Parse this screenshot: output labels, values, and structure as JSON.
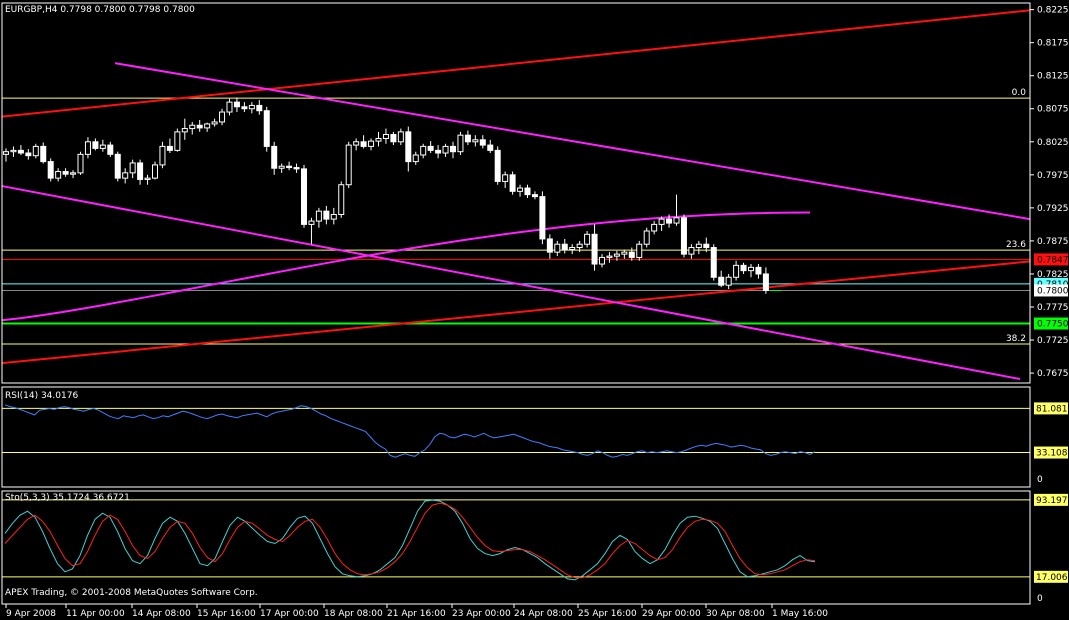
{
  "title": "EURGBP,H4  0.7798 0.7800 0.7798 0.7800",
  "copyright": "APEX Trading, © 2001-2008 MetaQuotes Software Corp.",
  "colors": {
    "background": "#000000",
    "frame": "#ffffff",
    "bull": "#ffffff",
    "bear": "#ffffff",
    "red_line": "#ff1010",
    "magenta_line": "#ff20ff",
    "fibo_line": "#ffff66",
    "green_line": "#00ff00",
    "rsi": "#3f7fff",
    "sto_main": "#3fd0d0",
    "sto_signal": "#ff2020"
  },
  "price_axis": {
    "ticks": [
      "0.8225",
      "0.8175",
      "0.8125",
      "0.8075",
      "0.8025",
      "0.7975",
      "0.7925",
      "0.7875",
      "0.7825",
      "0.7775",
      "0.7725",
      "0.7675"
    ],
    "ylim": [
      0.766,
      0.8235
    ]
  },
  "price_tags": [
    {
      "label": "0.7847",
      "value": 0.7847,
      "bg": "#ff1010",
      "fg": "#000000"
    },
    {
      "label": "0.7810",
      "value": 0.781,
      "bg": "#66ffff",
      "fg": "#000000"
    },
    {
      "label": "0.7800",
      "value": 0.78,
      "bg": "#ffffff",
      "fg": "#000000"
    },
    {
      "label": "0.7750",
      "value": 0.775,
      "bg": "#00ff00",
      "fg": "#000000"
    }
  ],
  "fib_levels": [
    {
      "label": "0.0",
      "value": 0.8091
    },
    {
      "label": "23.6",
      "value": 0.7861
    },
    {
      "label": "38.2",
      "value": 0.7719
    }
  ],
  "chart_data": [
    {
      "type": "candlestick",
      "name": "EURGBP,H4",
      "x_tick_labels": [
        "9 Apr 2008",
        "11 Apr 00:00",
        "14 Apr 08:00",
        "15 Apr 16:00",
        "17 Apr 00:00",
        "18 Apr 08:00",
        "21 Apr 16:00",
        "23 Apr 00:00",
        "24 Apr 08:00",
        "25 Apr 16:00",
        "29 Apr 00:00",
        "30 Apr 08:00",
        "1 May 16:00"
      ],
      "ohlc": [
        [
          0.8006,
          0.8015,
          0.7995,
          0.801
        ],
        [
          0.801,
          0.8018,
          0.8002,
          0.8012
        ],
        [
          0.8012,
          0.802,
          0.8005,
          0.8008
        ],
        [
          0.8008,
          0.8014,
          0.7998,
          0.8004
        ],
        [
          0.8004,
          0.8022,
          0.8,
          0.8018
        ],
        [
          0.8018,
          0.8024,
          0.7992,
          0.7995
        ],
        [
          0.7995,
          0.8,
          0.7965,
          0.797
        ],
        [
          0.797,
          0.7985,
          0.7965,
          0.798
        ],
        [
          0.798,
          0.7985,
          0.7972,
          0.7976
        ],
        [
          0.7976,
          0.7982,
          0.797,
          0.7978
        ],
        [
          0.7978,
          0.801,
          0.7975,
          0.8006
        ],
        [
          0.8006,
          0.8032,
          0.8,
          0.8025
        ],
        [
          0.8025,
          0.803,
          0.8012,
          0.8015
        ],
        [
          0.8015,
          0.8028,
          0.801,
          0.802
        ],
        [
          0.802,
          0.8025,
          0.8002,
          0.8006
        ],
        [
          0.8006,
          0.801,
          0.7965,
          0.797
        ],
        [
          0.797,
          0.7985,
          0.7962,
          0.7978
        ],
        [
          0.7978,
          0.7998,
          0.797,
          0.7993
        ],
        [
          0.7993,
          0.7998,
          0.796,
          0.7968
        ],
        [
          0.7968,
          0.7975,
          0.796,
          0.797
        ],
        [
          0.797,
          0.7995,
          0.7968,
          0.799
        ],
        [
          0.799,
          0.8025,
          0.7985,
          0.8018
        ],
        [
          0.8018,
          0.803,
          0.8008,
          0.8012
        ],
        [
          0.8012,
          0.8045,
          0.801,
          0.804
        ],
        [
          0.804,
          0.806,
          0.8028,
          0.8045
        ],
        [
          0.8045,
          0.8055,
          0.8036,
          0.805
        ],
        [
          0.805,
          0.8058,
          0.804,
          0.8046
        ],
        [
          0.8046,
          0.8054,
          0.804,
          0.8052
        ],
        [
          0.8052,
          0.806,
          0.8048,
          0.8055
        ],
        [
          0.8055,
          0.8075,
          0.805,
          0.807
        ],
        [
          0.807,
          0.809,
          0.8065,
          0.8085
        ],
        [
          0.8085,
          0.8092,
          0.807,
          0.8078
        ],
        [
          0.8078,
          0.8085,
          0.807,
          0.8075
        ],
        [
          0.8075,
          0.8085,
          0.8068,
          0.808
        ],
        [
          0.808,
          0.8088,
          0.8066,
          0.8072
        ],
        [
          0.8072,
          0.8078,
          0.801,
          0.8018
        ],
        [
          0.8018,
          0.8025,
          0.7975,
          0.7985
        ],
        [
          0.7985,
          0.7992,
          0.7978,
          0.7988
        ],
        [
          0.7988,
          0.7995,
          0.7982,
          0.7986
        ],
        [
          0.7986,
          0.7992,
          0.7978,
          0.7984
        ],
        [
          0.7984,
          0.799,
          0.7895,
          0.79
        ],
        [
          0.79,
          0.791,
          0.787,
          0.7905
        ],
        [
          0.7905,
          0.7925,
          0.7895,
          0.792
        ],
        [
          0.792,
          0.7928,
          0.79,
          0.7908
        ],
        [
          0.7908,
          0.7925,
          0.79,
          0.7915
        ],
        [
          0.7915,
          0.7965,
          0.791,
          0.796
        ],
        [
          0.796,
          0.8025,
          0.7955,
          0.802
        ],
        [
          0.802,
          0.803,
          0.8012,
          0.8025
        ],
        [
          0.8025,
          0.8035,
          0.8015,
          0.8018
        ],
        [
          0.8018,
          0.803,
          0.8012,
          0.8026
        ],
        [
          0.8026,
          0.804,
          0.8018,
          0.803
        ],
        [
          0.803,
          0.8045,
          0.8022,
          0.8036
        ],
        [
          0.8036,
          0.804,
          0.802,
          0.8025
        ],
        [
          0.8025,
          0.8045,
          0.802,
          0.804
        ],
        [
          0.804,
          0.8048,
          0.798,
          0.7995
        ],
        [
          0.7995,
          0.801,
          0.799,
          0.8005
        ],
        [
          0.8005,
          0.8022,
          0.8,
          0.8018
        ],
        [
          0.8018,
          0.8026,
          0.8008,
          0.8012
        ],
        [
          0.8012,
          0.802,
          0.8,
          0.8008
        ],
        [
          0.8008,
          0.8022,
          0.8002,
          0.8018
        ],
        [
          0.8018,
          0.8025,
          0.8,
          0.801
        ],
        [
          0.801,
          0.804,
          0.8005,
          0.8035
        ],
        [
          0.8035,
          0.8042,
          0.802,
          0.8025
        ],
        [
          0.8025,
          0.8035,
          0.8018,
          0.8028
        ],
        [
          0.8028,
          0.8035,
          0.8015,
          0.802
        ],
        [
          0.802,
          0.8028,
          0.8008,
          0.8012
        ],
        [
          0.8012,
          0.8018,
          0.796,
          0.7965
        ],
        [
          0.7965,
          0.798,
          0.7955,
          0.7975
        ],
        [
          0.7975,
          0.798,
          0.7945,
          0.795
        ],
        [
          0.795,
          0.796,
          0.7942,
          0.7955
        ],
        [
          0.7955,
          0.796,
          0.794,
          0.7945
        ],
        [
          0.7945,
          0.795,
          0.7938,
          0.7942
        ],
        [
          0.7942,
          0.795,
          0.787,
          0.7878
        ],
        [
          0.7878,
          0.7885,
          0.7848,
          0.7858
        ],
        [
          0.7858,
          0.7875,
          0.7852,
          0.787
        ],
        [
          0.787,
          0.7878,
          0.7856,
          0.7862
        ],
        [
          0.7862,
          0.787,
          0.7855,
          0.7865
        ],
        [
          0.7865,
          0.7875,
          0.7858,
          0.787
        ],
        [
          0.787,
          0.789,
          0.7865,
          0.7885
        ],
        [
          0.7885,
          0.79,
          0.783,
          0.784
        ],
        [
          0.784,
          0.7855,
          0.7835,
          0.785
        ],
        [
          0.785,
          0.7858,
          0.7842,
          0.7852
        ],
        [
          0.7852,
          0.786,
          0.7845,
          0.7855
        ],
        [
          0.7855,
          0.7862,
          0.7848,
          0.7858
        ],
        [
          0.7858,
          0.7865,
          0.7845,
          0.785
        ],
        [
          0.785,
          0.7875,
          0.7845,
          0.787
        ],
        [
          0.787,
          0.7895,
          0.7865,
          0.789
        ],
        [
          0.789,
          0.7905,
          0.7885,
          0.79
        ],
        [
          0.79,
          0.7912,
          0.789,
          0.7908
        ],
        [
          0.7908,
          0.7915,
          0.7895,
          0.7902
        ],
        [
          0.7902,
          0.7945,
          0.7898,
          0.791
        ],
        [
          0.791,
          0.7915,
          0.785,
          0.7855
        ],
        [
          0.7855,
          0.787,
          0.7848,
          0.7865
        ],
        [
          0.7865,
          0.7875,
          0.7855,
          0.787
        ],
        [
          0.787,
          0.788,
          0.7858,
          0.7865
        ],
        [
          0.7865,
          0.787,
          0.7815,
          0.782
        ],
        [
          0.782,
          0.783,
          0.7805,
          0.7808
        ],
        [
          0.7808,
          0.7825,
          0.7802,
          0.782
        ],
        [
          0.782,
          0.7845,
          0.7815,
          0.7838
        ],
        [
          0.7838,
          0.7842,
          0.7825,
          0.783
        ],
        [
          0.783,
          0.784,
          0.782,
          0.7835
        ],
        [
          0.7835,
          0.784,
          0.7818,
          0.7825
        ],
        [
          0.7825,
          0.7835,
          0.7795,
          0.78
        ]
      ]
    },
    {
      "type": "line",
      "name": "RSI(14) 34.0176",
      "levels": [
        {
          "label": "81.0811",
          "value": 81.08
        },
        {
          "label": "33.1081",
          "value": 33.11
        }
      ],
      "axis_labels": [
        "0"
      ],
      "ylim": [
        0,
        100
      ],
      "values": [
        85,
        83,
        82,
        80,
        78,
        76,
        74,
        79,
        80,
        81,
        80,
        82,
        83,
        82,
        80,
        79,
        78,
        80,
        81,
        79,
        76,
        73,
        71,
        70,
        73,
        72,
        71,
        73,
        74,
        72,
        70,
        71,
        73,
        72,
        74,
        76,
        78,
        77,
        75,
        73,
        71,
        70,
        72,
        74,
        75,
        73,
        72,
        71,
        73,
        74,
        75,
        76,
        74,
        72,
        75,
        77,
        78,
        79,
        80,
        82,
        84,
        83,
        81,
        78,
        75,
        73,
        70,
        68,
        66,
        64,
        62,
        60,
        58,
        56,
        50,
        44,
        40,
        37,
        30,
        28,
        30,
        32,
        30,
        29,
        33,
        36,
        42,
        50,
        54,
        53,
        50,
        49,
        51,
        53,
        52,
        50,
        52,
        54,
        51,
        49,
        50,
        51,
        52,
        53,
        51,
        49,
        47,
        45,
        44,
        42,
        40,
        39,
        38,
        36,
        35,
        34,
        33,
        31,
        30,
        32,
        35,
        33,
        30,
        28,
        29,
        31,
        30,
        32,
        34,
        35,
        33,
        34,
        33,
        34,
        35,
        34,
        33,
        34,
        36,
        38,
        40,
        41,
        40,
        42,
        43,
        42,
        41,
        39,
        40,
        41,
        40,
        38,
        37,
        36,
        32,
        30,
        31,
        33,
        34,
        33,
        32,
        34,
        33,
        31,
        34
      ]
    },
    {
      "type": "line",
      "name": "Sto(5,3,3) 35.1724 36.6721",
      "levels": [
        {
          "label": "93.1973",
          "value": 93.2
        },
        {
          "label": "17.0068",
          "value": 17.0
        }
      ],
      "axis_labels": [
        "0"
      ],
      "ylim": [
        0,
        100
      ],
      "series": [
        {
          "name": "main",
          "values": [
            60,
            70,
            78,
            82,
            76,
            62,
            45,
            30,
            22,
            25,
            38,
            58,
            74,
            80,
            76,
            62,
            45,
            33,
            30,
            38,
            55,
            70,
            76,
            72,
            60,
            45,
            30,
            28,
            35,
            52,
            68,
            76,
            72,
            65,
            58,
            52,
            50,
            55,
            66,
            75,
            77,
            70,
            55,
            40,
            27,
            20,
            18,
            17,
            18,
            20,
            24,
            30,
            36,
            48,
            65,
            82,
            92,
            93,
            92,
            88,
            82,
            70,
            55,
            45,
            40,
            38,
            40,
            44,
            46,
            44,
            40,
            36,
            30,
            25,
            20,
            15,
            14,
            18,
            24,
            30,
            40,
            52,
            58,
            54,
            42,
            35,
            30,
            34,
            44,
            58,
            70,
            76,
            77,
            75,
            72,
            65,
            50,
            35,
            22,
            17,
            18,
            20,
            22,
            24,
            28,
            34,
            38,
            33,
            32
          ]
        },
        {
          "name": "signal",
          "values": [
            50,
            58,
            66,
            74,
            78,
            72,
            62,
            48,
            35,
            28,
            30,
            42,
            58,
            72,
            78,
            74,
            62,
            48,
            38,
            35,
            42,
            55,
            66,
            72,
            70,
            60,
            46,
            36,
            32,
            40,
            54,
            66,
            72,
            70,
            64,
            58,
            54,
            52,
            58,
            66,
            72,
            74,
            66,
            54,
            40,
            30,
            24,
            20,
            19,
            20,
            22,
            26,
            32,
            40,
            52,
            66,
            80,
            88,
            90,
            88,
            84,
            76,
            66,
            56,
            48,
            43,
            42,
            43,
            44,
            44,
            42,
            38,
            34,
            29,
            24,
            19,
            16,
            16,
            19,
            24,
            30,
            40,
            48,
            53,
            50,
            44,
            38,
            34,
            36,
            44,
            56,
            66,
            72,
            74,
            73,
            70,
            62,
            48,
            35,
            26,
            20,
            19,
            20,
            22,
            24,
            28,
            32,
            34,
            33
          ]
        }
      ]
    }
  ]
}
